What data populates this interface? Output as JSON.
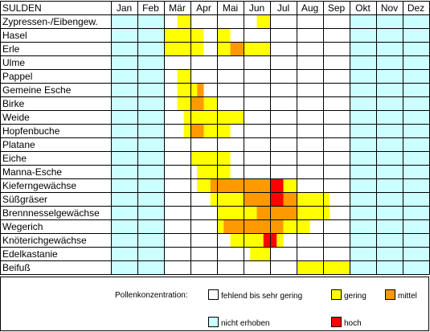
{
  "chart_data": {
    "type": "heatmap",
    "title": "SULDEN",
    "months": [
      "Jan",
      "Feb",
      "Mär",
      "Apr",
      "Mai",
      "Jun",
      "Jul",
      "Aug",
      "Sep",
      "Okt",
      "Nov",
      "Dez"
    ],
    "colors": {
      "fehlend": "#ffffff",
      "gering": "#ffff00",
      "mittel": "#ff9900",
      "hoch": "#ff0000",
      "nicht_erhoben": "#ccffff"
    },
    "species": [
      {
        "name": "Zypressen-/Eibengew.",
        "periods": {
          "gering": [
            [
              3.5,
              4.0
            ],
            [
              6.5,
              7.0
            ]
          ],
          "mittel": [],
          "hoch": []
        }
      },
      {
        "name": "Hasel",
        "periods": {
          "gering": [
            [
              3.0,
              4.5
            ],
            [
              5.0,
              5.5
            ]
          ],
          "mittel": [],
          "hoch": []
        }
      },
      {
        "name": "Erle",
        "periods": {
          "gering": [
            [
              3.0,
              4.5
            ],
            [
              5.0,
              5.5
            ],
            [
              6.0,
              7.0
            ]
          ],
          "mittel": [
            [
              5.5,
              6.0
            ]
          ],
          "hoch": []
        }
      },
      {
        "name": "Ulme",
        "periods": {
          "gering": [],
          "mittel": [],
          "hoch": []
        }
      },
      {
        "name": "Pappel",
        "periods": {
          "gering": [
            [
              3.5,
              4.0
            ]
          ],
          "mittel": [],
          "hoch": []
        }
      },
      {
        "name": "Gemeine Esche",
        "periods": {
          "gering": [
            [
              3.5,
              4.25
            ]
          ],
          "mittel": [
            [
              4.25,
              4.5
            ]
          ],
          "hoch": []
        }
      },
      {
        "name": "Birke",
        "periods": {
          "gering": [
            [
              3.5,
              4.0
            ],
            [
              4.5,
              5.0
            ]
          ],
          "mittel": [
            [
              4.0,
              4.5
            ]
          ],
          "hoch": []
        }
      },
      {
        "name": "Weide",
        "periods": {
          "gering": [
            [
              3.75,
              6.0
            ]
          ],
          "mittel": [],
          "hoch": []
        }
      },
      {
        "name": "Hopfenbuche",
        "periods": {
          "gering": [
            [
              3.75,
              4.0
            ],
            [
              4.5,
              5.5
            ]
          ],
          "mittel": [
            [
              4.0,
              4.5
            ]
          ],
          "hoch": []
        }
      },
      {
        "name": "Platane",
        "periods": {
          "gering": [],
          "mittel": [],
          "hoch": []
        }
      },
      {
        "name": "Eiche",
        "periods": {
          "gering": [
            [
              4.0,
              5.5
            ]
          ],
          "mittel": [],
          "hoch": []
        }
      },
      {
        "name": "Manna-Esche",
        "periods": {
          "gering": [
            [
              4.25,
              5.5
            ]
          ],
          "mittel": [],
          "hoch": []
        }
      },
      {
        "name": "Kieferngewächse",
        "periods": {
          "gering": [
            [
              4.25,
              4.75
            ],
            [
              7.5,
              8.0
            ]
          ],
          "mittel": [
            [
              4.75,
              7.0
            ]
          ],
          "hoch": [
            [
              7.0,
              7.5
            ]
          ]
        }
      },
      {
        "name": "Süßgräser",
        "periods": {
          "gering": [
            [
              4.75,
              6.0
            ],
            [
              8.0,
              9.25
            ]
          ],
          "mittel": [
            [
              6.0,
              7.0
            ],
            [
              7.5,
              8.0
            ]
          ],
          "hoch": [
            [
              7.0,
              7.5
            ]
          ]
        }
      },
      {
        "name": "Brennnesselgewächse",
        "periods": {
          "gering": [
            [
              5.0,
              6.5
            ],
            [
              8.0,
              9.25
            ]
          ],
          "mittel": [
            [
              6.5,
              8.0
            ]
          ],
          "hoch": []
        }
      },
      {
        "name": "Wegerich",
        "periods": {
          "gering": [
            [
              5.0,
              5.25
            ],
            [
              7.5,
              8.5
            ]
          ],
          "mittel": [
            [
              5.25,
              7.5
            ]
          ],
          "hoch": []
        }
      },
      {
        "name": "Knöterichgewächse",
        "periods": {
          "gering": [
            [
              5.5,
              6.75
            ],
            [
              7.25,
              7.5
            ]
          ],
          "mittel": [],
          "hoch": [
            [
              6.75,
              7.25
            ]
          ]
        }
      },
      {
        "name": "Edelkastanie",
        "periods": {
          "gering": [
            [
              6.25,
              7.0
            ]
          ],
          "mittel": [],
          "hoch": []
        }
      },
      {
        "name": "Beifuß",
        "periods": {
          "gering": [
            [
              8.0,
              10.0
            ]
          ],
          "mittel": [],
          "hoch": []
        }
      }
    ]
  },
  "legend": {
    "caption": "Pollenkonzentration:",
    "items": [
      {
        "key": "fehlend",
        "label": "fehlend bis sehr gering"
      },
      {
        "key": "gering",
        "label": "gering"
      },
      {
        "key": "mittel",
        "label": "mittel"
      },
      {
        "key": "nicht_erhoben",
        "label": "nicht erhoben"
      },
      {
        "key": "hoch",
        "label": "hoch"
      }
    ]
  }
}
